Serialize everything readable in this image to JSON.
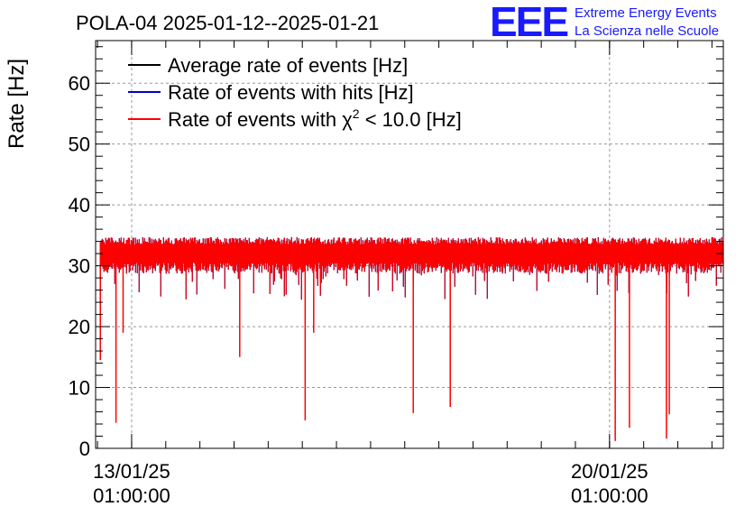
{
  "title": "POLA-04 2025-01-12--2025-01-21",
  "logo": {
    "mark": "EEE",
    "line1": "Extreme Energy Events",
    "line2": "La Scienza nelle Scuole"
  },
  "chart_data": {
    "type": "line",
    "title": "POLA-04 2025-01-12--2025-01-21",
    "xlabel": "",
    "ylabel": "Rate [Hz]",
    "ylim": [
      0,
      67
    ],
    "xlim": [
      "2025-01-12 12:20",
      "2025-01-21 17:00"
    ],
    "yticks": [
      0,
      10,
      20,
      30,
      40,
      50,
      60
    ],
    "xticks": [
      {
        "date": "13/01/25",
        "time": "01:00:00"
      },
      {
        "date": "20/01/25",
        "time": "01:00:00"
      }
    ],
    "grid": true,
    "legend": "top-left",
    "series": [
      {
        "name": "Average rate of events [Hz]",
        "color": "#000000",
        "baseline": 32
      },
      {
        "name": "Rate of events with hits [Hz]",
        "color": "#0000cc",
        "baseline": 32
      },
      {
        "name": "Rate of events with χ² < 10.0 [Hz]",
        "name_base": "Rate of events with ",
        "name_sym": "χ",
        "name_sup": "2",
        "name_tail": " < 10.0 [Hz]",
        "color": "#ff0000",
        "baseline": 32
      }
    ],
    "data_start": "2025-01-12 14:00",
    "data_end": "2025-01-21 17:00",
    "dense_fill_end": "2025-01-21 17:00",
    "band": [
      30.5,
      33.5
    ],
    "dips": [
      {
        "x": "2025-01-12 14:00",
        "y": 14.5
      },
      {
        "x": "2025-01-12 19:30",
        "y": 4.2
      },
      {
        "x": "2025-01-12 22:00",
        "y": 19.0
      },
      {
        "x": "2025-01-14 15:00",
        "y": 15.0
      },
      {
        "x": "2025-01-15 14:00",
        "y": 4.6
      },
      {
        "x": "2025-01-15 17:00",
        "y": 19.0
      },
      {
        "x": "2025-01-17 04:00",
        "y": 5.8
      },
      {
        "x": "2025-01-17 17:00",
        "y": 6.8
      },
      {
        "x": "2025-01-20 03:00",
        "y": 1.2
      },
      {
        "x": "2025-01-20 08:00",
        "y": 3.4
      },
      {
        "x": "2025-01-20 21:00",
        "y": 1.6
      },
      {
        "x": "2025-01-20 22:00",
        "y": 5.6
      }
    ]
  }
}
